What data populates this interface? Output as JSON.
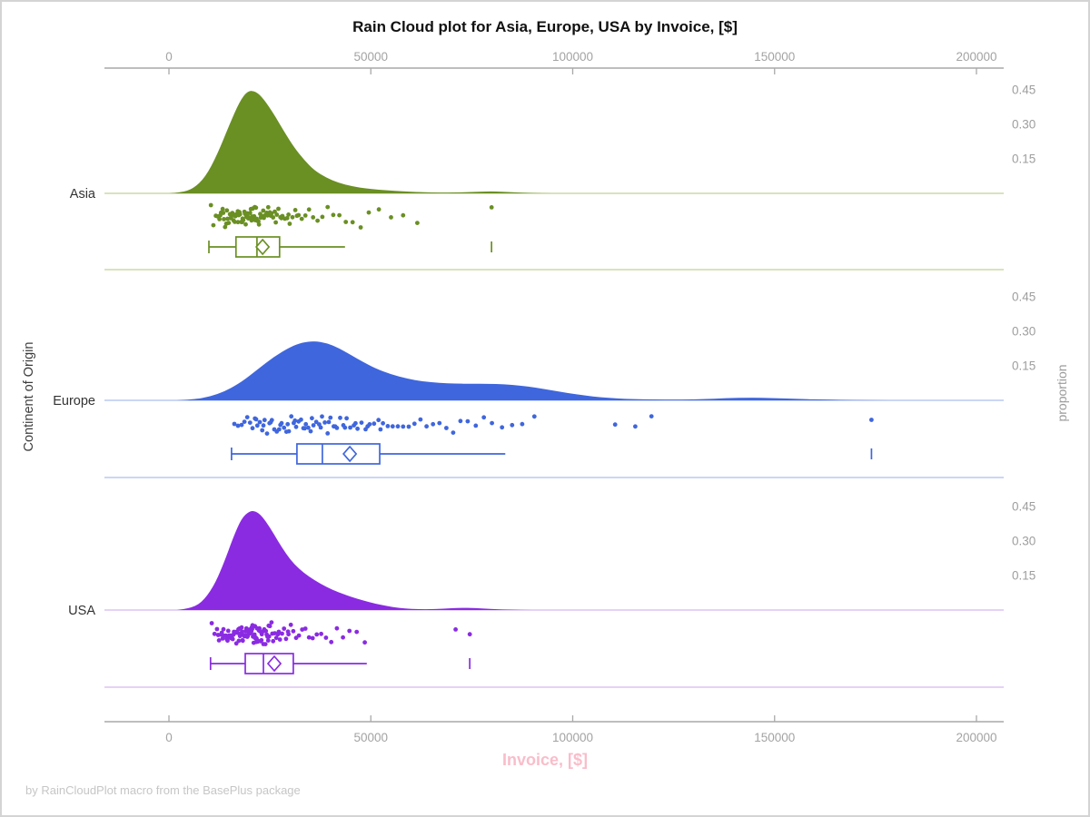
{
  "title": "Rain Cloud plot for Asia, Europe, USA by Invoice, [$]",
  "footer": "by RainCloudPlot macro from the BasePlus package",
  "axes": {
    "x_label": "Invoice, [$]",
    "y_label_left": "Continent of Origin",
    "y_label_right": "proportion",
    "x_ticks": [
      0,
      50000,
      100000,
      150000,
      200000
    ],
    "x_tick_labels": [
      "0",
      "50000",
      "100000",
      "150000",
      "200000"
    ],
    "prop_ticks": [
      0.15,
      0.3,
      0.45
    ],
    "prop_tick_labels": [
      "0.15",
      "0.30",
      "0.45"
    ]
  },
  "chart_data": {
    "type": "raincloud",
    "x_range": [
      0,
      200000
    ],
    "proportion_range": [
      0,
      0.45
    ],
    "groups": [
      {
        "name": "Asia",
        "color": "#6a8f23",
        "pale_color": "#ccdaa7",
        "density": [
          [
            0,
            0
          ],
          [
            3000,
            0.004
          ],
          [
            6000,
            0.02
          ],
          [
            9000,
            0.07
          ],
          [
            12000,
            0.17
          ],
          [
            15000,
            0.3
          ],
          [
            17500,
            0.4
          ],
          [
            19500,
            0.447
          ],
          [
            21500,
            0.445
          ],
          [
            23500,
            0.41
          ],
          [
            26000,
            0.345
          ],
          [
            28500,
            0.27
          ],
          [
            31000,
            0.2
          ],
          [
            33500,
            0.145
          ],
          [
            36000,
            0.1
          ],
          [
            39000,
            0.068
          ],
          [
            42000,
            0.046
          ],
          [
            45000,
            0.032
          ],
          [
            48000,
            0.023
          ],
          [
            52000,
            0.016
          ],
          [
            56000,
            0.011
          ],
          [
            60000,
            0.007
          ],
          [
            65000,
            0.004
          ],
          [
            70000,
            0.003
          ],
          [
            75000,
            0.006
          ],
          [
            80000,
            0.009
          ],
          [
            85000,
            0.005
          ],
          [
            90000,
            0.001
          ],
          [
            95000,
            0
          ]
        ],
        "box": {
          "whisker_low": 9900,
          "q1": 16600,
          "median": 21800,
          "q3": 27400,
          "whisker_high": 43600,
          "mean": 23200,
          "outliers": [
            79900
          ]
        },
        "rain": [
          10400,
          11000,
          11600,
          12100,
          12500,
          12700,
          12900,
          13300,
          13450,
          13600,
          13900,
          14200,
          14350,
          14500,
          14800,
          15100,
          15250,
          15400,
          15700,
          15850,
          16000,
          16300,
          16450,
          16600,
          16900,
          17050,
          17100,
          17300,
          17450,
          17600,
          17900,
          18100,
          18250,
          18400,
          18700,
          18850,
          19000,
          19200,
          19350,
          19500,
          19650,
          19800,
          20100,
          20300,
          20450,
          20600,
          20750,
          20900,
          21100,
          21250,
          21400,
          21550,
          21700,
          22000,
          22150,
          22300,
          22600,
          22750,
          22900,
          23200,
          23350,
          23500,
          23900,
          24200,
          24400,
          24600,
          25000,
          25200,
          25400,
          25800,
          26200,
          26450,
          26700,
          27100,
          27600,
          27850,
          28100,
          28700,
          29300,
          29600,
          29900,
          30600,
          31300,
          31700,
          32100,
          32900,
          33800,
          34700,
          35700,
          36800,
          38000,
          39300,
          40700,
          42200,
          43800,
          45500,
          47500,
          49500,
          52000,
          55000,
          58000,
          61500,
          79900
        ]
      },
      {
        "name": "Europe",
        "color": "#3f66dd",
        "pale_color": "#bac8f0",
        "density": [
          [
            2000,
            0
          ],
          [
            6000,
            0.004
          ],
          [
            10000,
            0.015
          ],
          [
            14000,
            0.04
          ],
          [
            18000,
            0.08
          ],
          [
            22000,
            0.135
          ],
          [
            26000,
            0.19
          ],
          [
            30000,
            0.232
          ],
          [
            33000,
            0.252
          ],
          [
            36000,
            0.258
          ],
          [
            39000,
            0.25
          ],
          [
            42000,
            0.228
          ],
          [
            45000,
            0.198
          ],
          [
            48000,
            0.168
          ],
          [
            51000,
            0.14
          ],
          [
            55000,
            0.113
          ],
          [
            59000,
            0.094
          ],
          [
            63000,
            0.082
          ],
          [
            67000,
            0.076
          ],
          [
            71000,
            0.073
          ],
          [
            75000,
            0.072
          ],
          [
            79000,
            0.072
          ],
          [
            83000,
            0.07
          ],
          [
            87000,
            0.064
          ],
          [
            91000,
            0.055
          ],
          [
            95000,
            0.043
          ],
          [
            99000,
            0.031
          ],
          [
            103000,
            0.021
          ],
          [
            107000,
            0.013
          ],
          [
            111000,
            0.008
          ],
          [
            115000,
            0.005
          ],
          [
            120000,
            0.004
          ],
          [
            126000,
            0.003
          ],
          [
            132000,
            0.005
          ],
          [
            138000,
            0.009
          ],
          [
            144000,
            0.012
          ],
          [
            150000,
            0.01
          ],
          [
            156000,
            0.006
          ],
          [
            163000,
            0.003
          ],
          [
            170000,
            0.001
          ],
          [
            178000,
            0
          ]
        ],
        "box": {
          "whisker_low": 15500,
          "q1": 31700,
          "median": 38000,
          "q3": 52200,
          "whisker_high": 83300,
          "mean": 44800,
          "outliers": [
            174000
          ]
        },
        "rain": [
          16200,
          17100,
          18000,
          18700,
          19400,
          20100,
          20700,
          21300,
          21600,
          21900,
          22500,
          23100,
          23400,
          23700,
          24300,
          24900,
          25200,
          25500,
          26100,
          26700,
          27300,
          27600,
          27900,
          28500,
          29100,
          29400,
          29700,
          30300,
          30900,
          31200,
          31500,
          32100,
          32700,
          33300,
          33600,
          33900,
          34500,
          35100,
          35400,
          35800,
          36500,
          37200,
          37600,
          37900,
          38600,
          39300,
          39600,
          40000,
          40800,
          41200,
          41600,
          42400,
          43200,
          43600,
          44000,
          44900,
          45800,
          46200,
          46700,
          47700,
          48700,
          49200,
          49700,
          50800,
          51900,
          52400,
          53000,
          54200,
          55400,
          56700,
          58000,
          59400,
          60800,
          62300,
          63800,
          65400,
          67000,
          68700,
          70400,
          72200,
          74000,
          76000,
          78000,
          80000,
          82500,
          85000,
          87500,
          90500,
          110500,
          115500,
          119500,
          174000
        ]
      },
      {
        "name": "USA",
        "color": "#8a2be2",
        "pale_color": "#dcc3f4",
        "density": [
          [
            2000,
            0
          ],
          [
            5000,
            0.006
          ],
          [
            8000,
            0.03
          ],
          [
            11000,
            0.1
          ],
          [
            13500,
            0.2
          ],
          [
            16000,
            0.32
          ],
          [
            18000,
            0.4
          ],
          [
            20000,
            0.432
          ],
          [
            21500,
            0.43
          ],
          [
            23000,
            0.41
          ],
          [
            25000,
            0.36
          ],
          [
            27000,
            0.3
          ],
          [
            29000,
            0.245
          ],
          [
            31000,
            0.2
          ],
          [
            33500,
            0.16
          ],
          [
            36000,
            0.13
          ],
          [
            39000,
            0.1
          ],
          [
            42000,
            0.077
          ],
          [
            45000,
            0.058
          ],
          [
            48000,
            0.042
          ],
          [
            51000,
            0.028
          ],
          [
            54000,
            0.017
          ],
          [
            57000,
            0.009
          ],
          [
            60000,
            0.005
          ],
          [
            64000,
            0.003
          ],
          [
            68000,
            0.006
          ],
          [
            72000,
            0.01
          ],
          [
            76000,
            0.009
          ],
          [
            80000,
            0.004
          ],
          [
            85000,
            0.001
          ],
          [
            90000,
            0
          ]
        ],
        "box": {
          "whisker_low": 10300,
          "q1": 18900,
          "median": 23400,
          "q3": 30800,
          "whisker_high": 49000,
          "mean": 26100,
          "outliers": [
            74500
          ]
        },
        "rain": [
          10600,
          11300,
          11900,
          12200,
          12400,
          12900,
          13100,
          13300,
          13500,
          13700,
          14100,
          14300,
          14500,
          14700,
          14800,
          15100,
          15200,
          15400,
          15500,
          15700,
          15800,
          16000,
          16100,
          16300,
          16600,
          16700,
          16900,
          17000,
          17200,
          17300,
          17500,
          17600,
          17800,
          18000,
          18100,
          18200,
          18300,
          18500,
          18700,
          18900,
          19000,
          19100,
          19200,
          19400,
          19500,
          19700,
          19900,
          20000,
          20100,
          20200,
          20400,
          20500,
          20600,
          20700,
          20800,
          20900,
          21000,
          21200,
          21300,
          21400,
          21500,
          21600,
          21700,
          21800,
          22000,
          22100,
          22300,
          22400,
          22600,
          22700,
          22900,
          23000,
          23300,
          23400,
          23600,
          23900,
          24000,
          24200,
          24400,
          24600,
          24700,
          24800,
          25000,
          25400,
          25600,
          25800,
          26200,
          26600,
          27000,
          27200,
          27500,
          28000,
          28500,
          29000,
          29500,
          29600,
          30200,
          30800,
          31500,
          32200,
          33000,
          33800,
          34700,
          35600,
          36600,
          37700,
          38900,
          40200,
          41600,
          43100,
          44700,
          46500,
          48500,
          71000,
          74500
        ]
      }
    ]
  }
}
